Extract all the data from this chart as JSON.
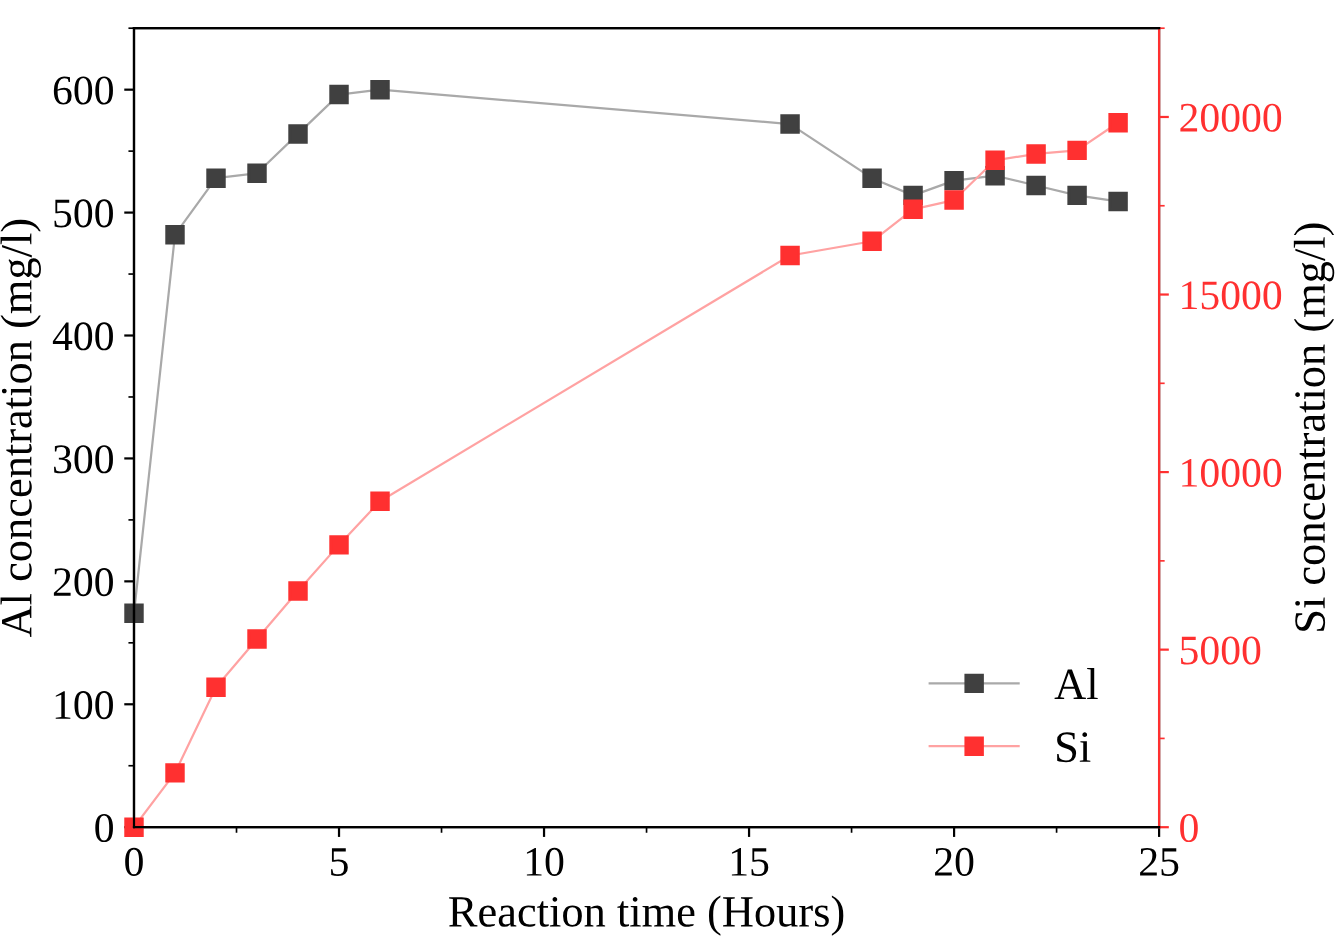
{
  "chart_data": {
    "type": "line",
    "xlabel": "Reaction time (Hours)",
    "ylabel": "Al concentration (mg/l)",
    "y2label": "Si concentration (mg/l)",
    "x": [
      0,
      1,
      2,
      3,
      4,
      5,
      6,
      16,
      18,
      19,
      20,
      21,
      22,
      23,
      24
    ],
    "series": [
      {
        "name": "Al",
        "color": "#404040",
        "values": [
          174,
          482,
          528,
          532,
          564,
          596,
          600,
          572,
          528,
          514,
          526,
          530,
          522,
          514,
          509
        ]
      },
      {
        "name": "Si",
        "color": "#ff3030",
        "axis": "y2",
        "values": [
          0,
          1530,
          3940,
          5300,
          6650,
          7950,
          9180,
          16100,
          16500,
          17400,
          17660,
          18780,
          18960,
          19060,
          19840
        ]
      }
    ],
    "xlim": [
      0,
      25
    ],
    "xticks": [
      0,
      5,
      10,
      15,
      20,
      25
    ],
    "ylim": [
      0,
      650
    ],
    "yticks": [
      0,
      100,
      200,
      300,
      400,
      500,
      600
    ],
    "y2lim": [
      0,
      22500
    ],
    "y2ticks": [
      0,
      5000,
      10000,
      15000,
      20000
    ],
    "marker": "square",
    "line_style": "solid",
    "legend": "bottom right",
    "grid": false
  }
}
